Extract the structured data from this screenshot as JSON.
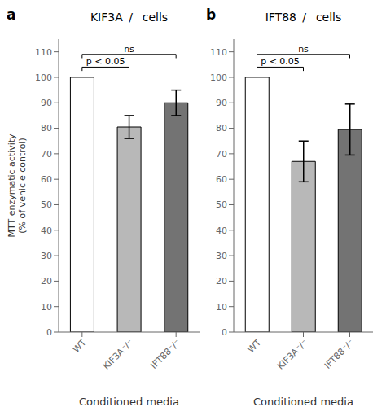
{
  "chart_data": [
    {
      "type": "bar",
      "panel_label": "a",
      "title": "KIF3A⁻/⁻ cells",
      "categories": [
        "WT",
        "KIF3A⁻/⁻",
        "IFT88⁻/⁻"
      ],
      "values": [
        100,
        80.5,
        90
      ],
      "errors": [
        0,
        4.5,
        5
      ],
      "colors": [
        "#ffffff",
        "#b8b8b8",
        "#737373"
      ],
      "ylim": [
        0,
        115
      ],
      "yticks": [
        0,
        10,
        20,
        30,
        40,
        50,
        60,
        70,
        80,
        90,
        100,
        110
      ],
      "xlabel": "Conditioned media",
      "ylabel": "MTT enzymatic activity\n(% of vehicle control)",
      "annotations": [
        {
          "text": "p < 0.05",
          "x1": "WT",
          "x2": "KIF3A⁻/⁻",
          "y": 104
        },
        {
          "text": "ns",
          "x1": "WT",
          "x2": "IFT88⁻/⁻",
          "y": 109
        }
      ]
    },
    {
      "type": "bar",
      "panel_label": "b",
      "title": "IFT88⁻/⁻ cells",
      "categories": [
        "WT",
        "KIF3A⁻/⁻",
        "IFT88⁻/⁻"
      ],
      "values": [
        100,
        67,
        79.5
      ],
      "errors": [
        0,
        8,
        10
      ],
      "colors": [
        "#ffffff",
        "#b8b8b8",
        "#737373"
      ],
      "ylim": [
        0,
        115
      ],
      "yticks": [
        0,
        10,
        20,
        30,
        40,
        50,
        60,
        70,
        80,
        90,
        100,
        110
      ],
      "xlabel": "Conditioned media",
      "annotations": [
        {
          "text": "p < 0.05",
          "x1": "WT",
          "x2": "KIF3A⁻/⁻",
          "y": 104
        },
        {
          "text": "ns",
          "x1": "WT",
          "x2": "IFT88⁻/⁻",
          "y": 109
        }
      ]
    }
  ]
}
